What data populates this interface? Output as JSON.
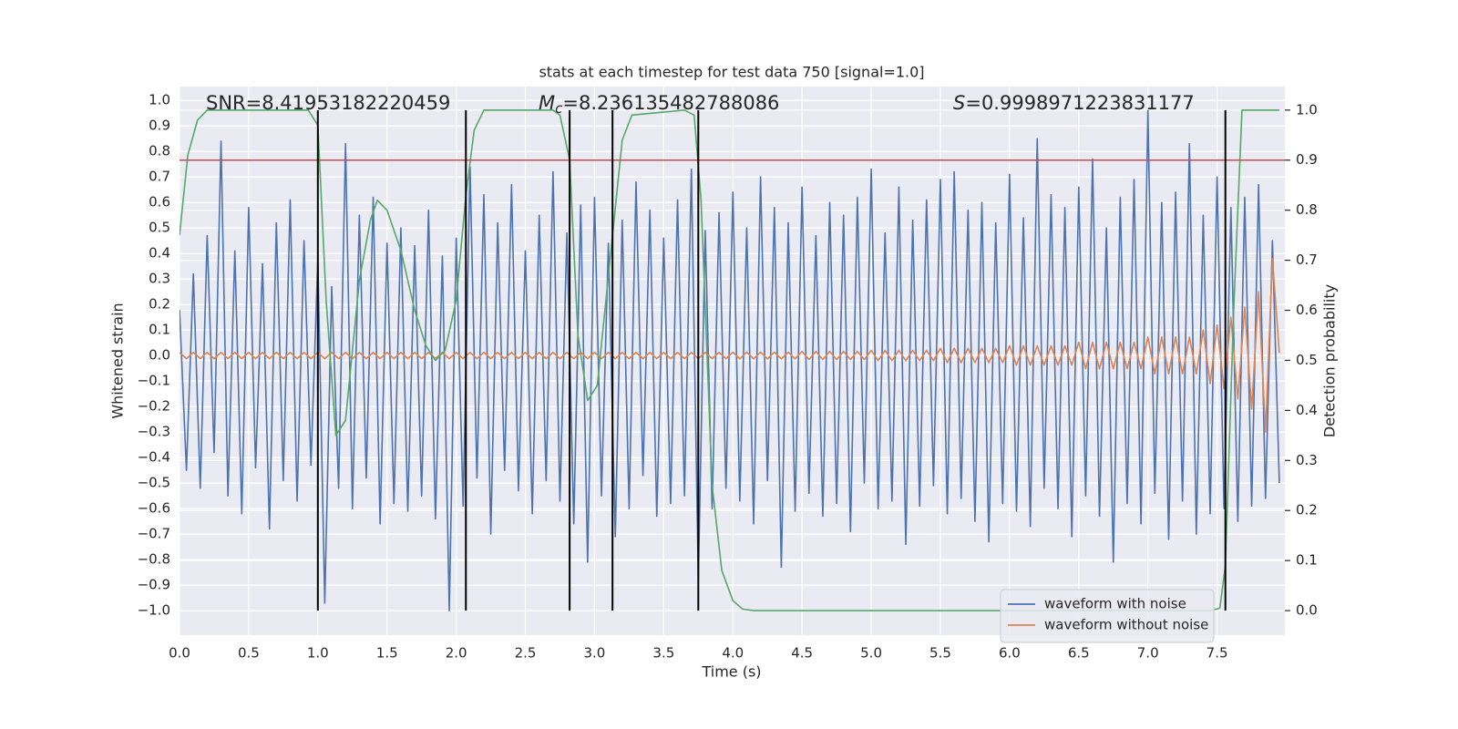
{
  "chart_data": {
    "type": "line",
    "title": "stats at each timestep for test data 750 [signal=1.0]",
    "xlabel": "Time (s)",
    "ylabel": "Whitened strain",
    "y2label": "Detection probability",
    "annotations": [
      {
        "text": "SNR=8.41953182220459"
      },
      {
        "symbol": "M",
        "subscript": "c",
        "text": "=8.236135482788086"
      },
      {
        "symbol": "S",
        "text": "=0.9998971223831177"
      }
    ],
    "xlim": [
      0,
      7.99
    ],
    "ylim": [
      -1.096,
      1.054
    ],
    "y2lim": [
      -0.049,
      1.047
    ],
    "grid": true,
    "background": "#eaeaf2",
    "legend": "lower right",
    "xticks": [
      {
        "value": 0,
        "label": "0.0"
      },
      {
        "value": 0.5,
        "label": "0.5"
      },
      {
        "value": 1,
        "label": "1.0"
      },
      {
        "value": 1.5,
        "label": "1.5"
      },
      {
        "value": 2,
        "label": "2.0"
      },
      {
        "value": 2.5,
        "label": "2.5"
      },
      {
        "value": 3,
        "label": "3.0"
      },
      {
        "value": 3.5,
        "label": "3.5"
      },
      {
        "value": 4,
        "label": "4.0"
      },
      {
        "value": 4.5,
        "label": "4.5"
      },
      {
        "value": 5,
        "label": "5.0"
      },
      {
        "value": 5.5,
        "label": "5.5"
      },
      {
        "value": 6,
        "label": "6.0"
      },
      {
        "value": 6.5,
        "label": "6.5"
      },
      {
        "value": 7,
        "label": "7.0"
      },
      {
        "value": 7.5,
        "label": "7.5"
      }
    ],
    "yticks": [
      {
        "value": 1,
        "label": "1.0"
      },
      {
        "value": 0.9,
        "label": "0.9"
      },
      {
        "value": 0.8,
        "label": "0.8"
      },
      {
        "value": 0.7,
        "label": "0.7"
      },
      {
        "value": 0.6,
        "label": "0.6"
      },
      {
        "value": 0.5,
        "label": "0.5"
      },
      {
        "value": 0.4,
        "label": "0.4"
      },
      {
        "value": 0.3,
        "label": "0.3"
      },
      {
        "value": 0.2,
        "label": "0.2"
      },
      {
        "value": 0.1,
        "label": "0.1"
      },
      {
        "value": 0,
        "label": "0.0"
      },
      {
        "value": -0.1,
        "label": "−0.1"
      },
      {
        "value": -0.2,
        "label": "−0.2"
      },
      {
        "value": -0.3,
        "label": "−0.3"
      },
      {
        "value": -0.4,
        "label": "−0.4"
      },
      {
        "value": -0.5,
        "label": "−0.5"
      },
      {
        "value": -0.6,
        "label": "−0.6"
      },
      {
        "value": -0.7,
        "label": "−0.7"
      },
      {
        "value": -0.8,
        "label": "−0.8"
      },
      {
        "value": -0.9,
        "label": "−0.9"
      },
      {
        "value": -1,
        "label": "−1.0"
      }
    ],
    "y2ticks": [
      {
        "value": 1,
        "label": "1.0"
      },
      {
        "value": 0.9,
        "label": "0.9"
      },
      {
        "value": 0.8,
        "label": "0.8"
      },
      {
        "value": 0.7,
        "label": "0.7"
      },
      {
        "value": 0.6,
        "label": "0.6"
      },
      {
        "value": 0.5,
        "label": "0.5"
      },
      {
        "value": 0.4,
        "label": "0.4"
      },
      {
        "value": 0.3,
        "label": "0.3"
      },
      {
        "value": 0.2,
        "label": "0.2"
      },
      {
        "value": 0.1,
        "label": "0.1"
      },
      {
        "value": 0,
        "label": "0.0"
      }
    ],
    "x": [
      0,
      0.05,
      0.1,
      0.15,
      0.2,
      0.25,
      0.3,
      0.35,
      0.4,
      0.45,
      0.5,
      0.55,
      0.6,
      0.65,
      0.7,
      0.75,
      0.8,
      0.85,
      0.9,
      0.95,
      1,
      1.05,
      1.1,
      1.15,
      1.2,
      1.25,
      1.3,
      1.35,
      1.4,
      1.45,
      1.5,
      1.55,
      1.6,
      1.65,
      1.7,
      1.75,
      1.8,
      1.85,
      1.9,
      1.95,
      2,
      2.05,
      2.1,
      2.15,
      2.2,
      2.25,
      2.3,
      2.35,
      2.4,
      2.45,
      2.5,
      2.55,
      2.6,
      2.65,
      2.7,
      2.75,
      2.8,
      2.85,
      2.9,
      2.95,
      3,
      3.05,
      3.1,
      3.15,
      3.2,
      3.25,
      3.3,
      3.35,
      3.4,
      3.45,
      3.5,
      3.55,
      3.6,
      3.65,
      3.7,
      3.75,
      3.8,
      3.85,
      3.9,
      3.95,
      4,
      4.05,
      4.1,
      4.15,
      4.2,
      4.25,
      4.3,
      4.35,
      4.4,
      4.45,
      4.5,
      4.55,
      4.6,
      4.65,
      4.7,
      4.75,
      4.8,
      4.85,
      4.9,
      4.95,
      5,
      5.05,
      5.1,
      5.15,
      5.2,
      5.25,
      5.3,
      5.35,
      5.4,
      5.45,
      5.5,
      5.55,
      5.6,
      5.65,
      5.7,
      5.75,
      5.8,
      5.85,
      5.9,
      5.95,
      6,
      6.05,
      6.1,
      6.15,
      6.2,
      6.25,
      6.3,
      6.35,
      6.4,
      6.45,
      6.5,
      6.55,
      6.6,
      6.65,
      6.7,
      6.75,
      6.8,
      6.85,
      6.9,
      6.95,
      7,
      7.05,
      7.1,
      7.15,
      7.2,
      7.25,
      7.3,
      7.35,
      7.4,
      7.45,
      7.5,
      7.55,
      7.6,
      7.65,
      7.7,
      7.75,
      7.8,
      7.85,
      7.9,
      7.95
    ],
    "series": [
      {
        "name": "waveform with noise",
        "color": "#4c72b0",
        "values": [
          0.18,
          -0.45,
          0.32,
          -0.52,
          0.47,
          -0.38,
          0.84,
          -0.55,
          0.41,
          -0.62,
          0.58,
          -0.44,
          0.36,
          -0.68,
          0.52,
          -0.49,
          0.61,
          -0.57,
          0.45,
          -0.43,
          0.38,
          -0.97,
          0.27,
          -0.52,
          0.83,
          -0.6,
          0.55,
          -0.48,
          0.62,
          -0.66,
          0.44,
          -0.58,
          0.5,
          -0.61,
          0.43,
          -0.55,
          0.57,
          -0.64,
          0.39,
          -1.0,
          0.46,
          -0.59,
          0.74,
          -0.48,
          0.63,
          -0.7,
          0.52,
          -0.45,
          0.67,
          -0.53,
          0.41,
          -0.62,
          0.55,
          -0.49,
          0.72,
          -0.57,
          0.48,
          -0.66,
          0.59,
          -0.81,
          0.62,
          -0.55,
          0.44,
          -0.71,
          0.53,
          -0.6,
          0.68,
          -0.47,
          0.57,
          -0.63,
          0.46,
          -0.58,
          0.61,
          -0.55,
          0.73,
          -0.88,
          0.49,
          -0.6,
          0.56,
          -0.52,
          0.64,
          -0.57,
          0.5,
          -0.66,
          0.7,
          -0.49,
          0.58,
          -0.83,
          0.52,
          -0.61,
          0.66,
          -0.54,
          0.47,
          -0.63,
          0.6,
          -0.58,
          0.55,
          -0.69,
          0.62,
          -0.5,
          0.73,
          -0.6,
          0.48,
          -0.57,
          0.66,
          -0.74,
          0.53,
          -0.59,
          0.61,
          -0.51,
          0.69,
          -0.62,
          0.72,
          -0.56,
          0.57,
          -0.65,
          0.6,
          -0.73,
          0.52,
          -0.58,
          0.71,
          -0.61,
          0.54,
          -0.67,
          0.85,
          -0.52,
          0.63,
          -0.6,
          0.58,
          -0.71,
          0.66,
          -0.55,
          0.77,
          -0.63,
          0.5,
          -0.81,
          0.62,
          -0.58,
          0.69,
          -0.66,
          0.96,
          -0.54,
          0.6,
          -0.72,
          0.64,
          -0.57,
          0.83,
          -0.7,
          0.55,
          -0.62,
          0.7,
          -0.6,
          0.58,
          -0.65,
          0.62,
          -0.59,
          0.67,
          -0.56,
          0.45,
          -0.5
        ]
      },
      {
        "name": "waveform without noise",
        "color": "#dd8452",
        "values": [
          0.012,
          -0.012,
          0.012,
          -0.012,
          0.012,
          -0.012,
          0.012,
          -0.012,
          0.012,
          -0.012,
          0.012,
          -0.012,
          0.012,
          -0.012,
          0.012,
          -0.012,
          0.012,
          -0.012,
          0.012,
          -0.012,
          0.012,
          -0.012,
          0.012,
          -0.012,
          0.012,
          -0.012,
          0.012,
          -0.012,
          0.012,
          -0.012,
          0.012,
          -0.012,
          0.012,
          -0.012,
          0.012,
          -0.012,
          0.012,
          -0.012,
          0.012,
          -0.012,
          0.012,
          -0.012,
          0.012,
          -0.012,
          0.012,
          -0.012,
          0.012,
          -0.012,
          0.012,
          -0.012,
          0.012,
          -0.012,
          0.012,
          -0.012,
          0.012,
          -0.012,
          0.012,
          -0.012,
          0.012,
          -0.012,
          0.012,
          -0.012,
          0.012,
          -0.012,
          0.012,
          -0.012,
          0.012,
          -0.012,
          0.012,
          -0.012,
          0.012,
          -0.012,
          0.012,
          -0.012,
          0.012,
          -0.012,
          0.012,
          -0.012,
          0.012,
          -0.012,
          0.013,
          -0.013,
          0.013,
          -0.013,
          0.013,
          -0.013,
          0.013,
          -0.013,
          0.013,
          -0.013,
          0.016,
          -0.016,
          0.016,
          -0.016,
          0.016,
          -0.016,
          0.016,
          -0.016,
          0.016,
          -0.016,
          0.02,
          -0.02,
          0.02,
          -0.02,
          0.02,
          -0.02,
          0.02,
          -0.02,
          0.02,
          -0.02,
          0.028,
          -0.028,
          0.028,
          -0.028,
          0.028,
          -0.028,
          0.028,
          -0.028,
          0.028,
          -0.028,
          0.038,
          -0.038,
          0.038,
          -0.038,
          0.038,
          -0.038,
          0.038,
          -0.038,
          0.038,
          -0.038,
          0.052,
          -0.052,
          0.052,
          -0.052,
          0.052,
          -0.052,
          0.052,
          -0.052,
          0.052,
          -0.052,
          0.072,
          -0.072,
          0.072,
          -0.072,
          0.072,
          -0.072,
          0.072,
          -0.072,
          0.1,
          -0.11,
          0.12,
          -0.13,
          0.15,
          -0.17,
          0.19,
          -0.21,
          0.25,
          -0.3,
          0.38,
          0.01
        ]
      },
      {
        "axis": "y2",
        "color": "#55a868",
        "x": [
          0,
          0.06,
          0.13,
          0.2,
          0.93,
          1,
          1.06,
          1.13,
          1.2,
          1.3,
          1.38,
          1.43,
          1.5,
          1.6,
          1.7,
          1.78,
          1.85,
          1.92,
          2,
          2.07,
          2.13,
          2.2,
          2.7,
          2.75,
          2.82,
          2.88,
          2.95,
          3.02,
          3.13,
          3.2,
          3.27,
          3.65,
          3.72,
          3.77,
          3.85,
          3.92,
          4,
          4.07,
          4.15,
          7.45,
          7.52,
          7.56,
          7.62,
          7.68,
          7.95
        ],
        "values": [
          0.75,
          0.91,
          0.98,
          1.0,
          1.0,
          0.97,
          0.62,
          0.35,
          0.38,
          0.66,
          0.78,
          0.82,
          0.8,
          0.72,
          0.6,
          0.53,
          0.5,
          0.52,
          0.62,
          0.83,
          0.96,
          1.0,
          1.0,
          0.99,
          0.9,
          0.55,
          0.42,
          0.45,
          0.75,
          0.94,
          0.99,
          1.0,
          0.99,
          0.82,
          0.25,
          0.08,
          0.02,
          0.003,
          0.0,
          0.0,
          0.005,
          0.09,
          0.6,
          1.0,
          1.0
        ]
      }
    ],
    "vlines": {
      "x": [
        1.0,
        2.07,
        2.82,
        3.13,
        3.75,
        7.56
      ],
      "ymin": -1.0,
      "ymax": 1.0,
      "color": "#000000"
    },
    "hline": {
      "y2": 0.9,
      "color": "#c44e52"
    }
  }
}
